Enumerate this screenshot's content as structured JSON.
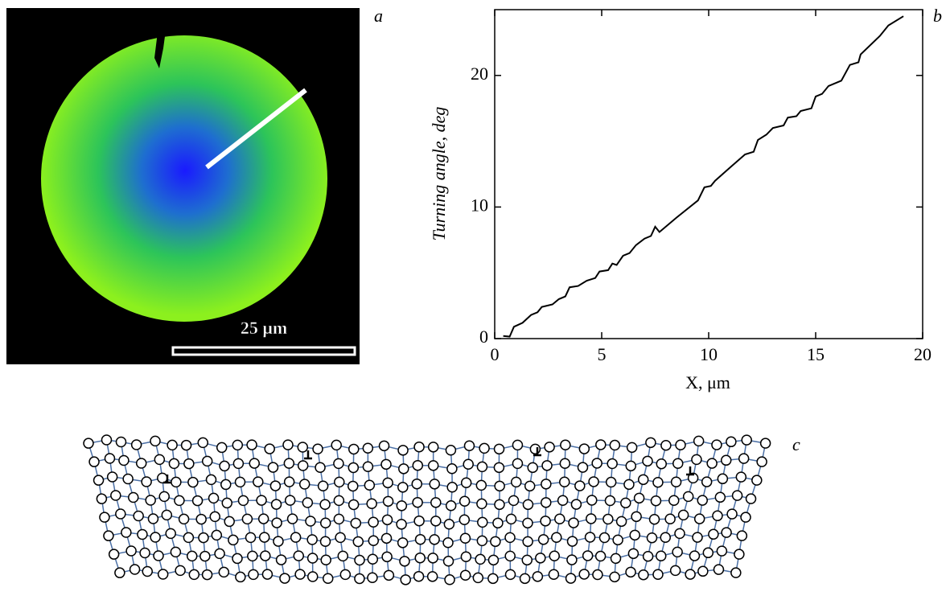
{
  "panels": {
    "a": "a",
    "b": "b",
    "c": "c"
  },
  "image": {
    "scale_bar": "25 μm"
  },
  "chart_data": {
    "type": "line",
    "x_label": "X, μm",
    "y_label": "Turning angle, deg",
    "x": [
      0.4,
      0.7,
      0.9,
      1.3,
      1.7,
      2.0,
      2.2,
      2.7,
      3.0,
      3.3,
      3.5,
      3.9,
      4.3,
      4.7,
      4.9,
      5.3,
      5.5,
      5.7,
      6.0,
      6.3,
      6.6,
      7.0,
      7.3,
      7.5,
      7.7,
      8.5,
      9.5,
      9.8,
      10.1,
      10.3,
      11.0,
      11.7,
      12.1,
      12.3,
      12.7,
      13.0,
      13.5,
      13.7,
      14.1,
      14.3,
      14.8,
      15.0,
      15.3,
      15.6,
      16.2,
      16.6,
      17.0,
      17.1,
      18.0,
      18.4,
      19.1
    ],
    "values": [
      0.2,
      0.15,
      0.9,
      1.2,
      1.8,
      2.0,
      2.4,
      2.6,
      3.0,
      3.2,
      3.9,
      4.0,
      4.4,
      4.6,
      5.1,
      5.2,
      5.7,
      5.6,
      6.3,
      6.5,
      7.1,
      7.6,
      7.8,
      8.5,
      8.1,
      9.2,
      10.5,
      11.5,
      11.6,
      12.0,
      13.0,
      14.0,
      14.2,
      15.1,
      15.5,
      16.0,
      16.2,
      16.8,
      16.9,
      17.3,
      17.5,
      18.4,
      18.6,
      19.2,
      19.6,
      20.8,
      21.0,
      21.6,
      23.0,
      23.8,
      24.5
    ],
    "color": "#000000",
    "xlim": [
      0,
      20
    ],
    "xticks": [
      0,
      5,
      10,
      15,
      20
    ],
    "ylim": [
      0,
      25
    ],
    "yticks": [
      0,
      10,
      20
    ]
  }
}
